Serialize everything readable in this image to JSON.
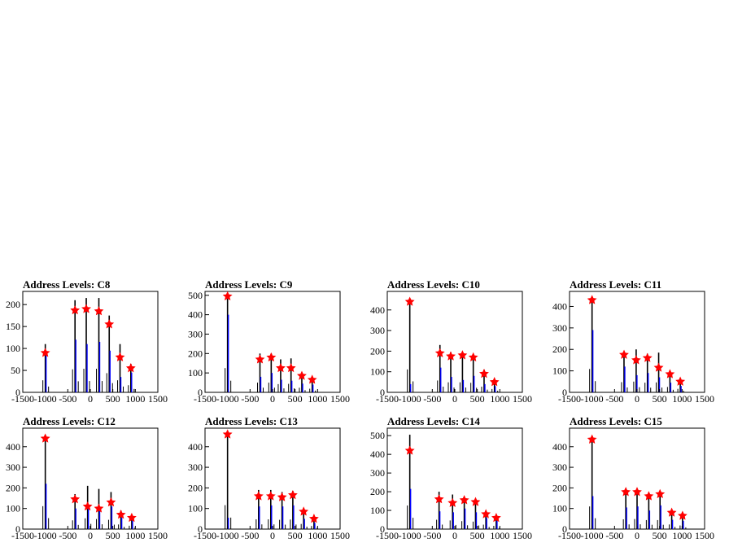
{
  "chart_data": [
    {
      "type": "bar",
      "title": "Address Levels: C8",
      "xlim": [
        -1500,
        1500
      ],
      "ylim": [
        0,
        230
      ],
      "yticks": [
        0,
        50,
        100,
        150,
        200
      ],
      "xticks": [
        -1500,
        -1000,
        -500,
        0,
        500,
        1000,
        1500
      ],
      "peaks": [
        {
          "x": -1000,
          "y": 90
        },
        {
          "x": -340,
          "y": 187
        },
        {
          "x": -90,
          "y": 190
        },
        {
          "x": 190,
          "y": 185
        },
        {
          "x": 420,
          "y": 155
        },
        {
          "x": 660,
          "y": 80
        },
        {
          "x": 900,
          "y": 55
        }
      ],
      "black_heights": [
        110,
        210,
        215,
        215,
        175,
        110,
        65
      ],
      "blue_heights": [
        90,
        120,
        110,
        115,
        95,
        35,
        45
      ]
    },
    {
      "type": "bar",
      "title": "Address Levels: C9",
      "xlim": [
        -1500,
        1500
      ],
      "ylim": [
        0,
        520
      ],
      "yticks": [
        0,
        100,
        200,
        300,
        400,
        500
      ],
      "xticks": [
        -1500,
        -1000,
        -500,
        0,
        500,
        1000,
        1500
      ],
      "peaks": [
        {
          "x": -1000,
          "y": 495
        },
        {
          "x": -280,
          "y": 170
        },
        {
          "x": -30,
          "y": 180
        },
        {
          "x": 180,
          "y": 125
        },
        {
          "x": 410,
          "y": 125
        },
        {
          "x": 650,
          "y": 85
        },
        {
          "x": 880,
          "y": 65
        }
      ],
      "black_heights": [
        500,
        200,
        200,
        170,
        175,
        95,
        75
      ],
      "blue_heights": [
        400,
        80,
        100,
        65,
        60,
        45,
        40
      ]
    },
    {
      "type": "bar",
      "title": "Address Levels: C10",
      "xlim": [
        -1500,
        1500
      ],
      "ylim": [
        0,
        490
      ],
      "yticks": [
        0,
        100,
        200,
        300,
        400
      ],
      "xticks": [
        -1500,
        -1000,
        -500,
        0,
        500,
        1000,
        1500
      ],
      "peaks": [
        {
          "x": -1000,
          "y": 440
        },
        {
          "x": -330,
          "y": 190
        },
        {
          "x": -90,
          "y": 175
        },
        {
          "x": 170,
          "y": 180
        },
        {
          "x": 410,
          "y": 170
        },
        {
          "x": 650,
          "y": 90
        },
        {
          "x": 880,
          "y": 50
        }
      ],
      "black_heights": [
        445,
        230,
        195,
        195,
        185,
        110,
        65
      ],
      "blue_heights": [
        40,
        120,
        75,
        60,
        80,
        40,
        30
      ]
    },
    {
      "type": "bar",
      "title": "Address Levels: C11",
      "xlim": [
        -1500,
        1500
      ],
      "ylim": [
        0,
        470
      ],
      "yticks": [
        0,
        100,
        200,
        300,
        400
      ],
      "xticks": [
        -1500,
        -1000,
        -500,
        0,
        500,
        1000,
        1500
      ],
      "peaks": [
        {
          "x": -1000,
          "y": 430
        },
        {
          "x": -290,
          "y": 175
        },
        {
          "x": -20,
          "y": 150
        },
        {
          "x": 230,
          "y": 160
        },
        {
          "x": 480,
          "y": 115
        },
        {
          "x": 730,
          "y": 85
        },
        {
          "x": 960,
          "y": 50
        }
      ],
      "black_heights": [
        435,
        190,
        200,
        180,
        185,
        100,
        65
      ],
      "blue_heights": [
        290,
        120,
        80,
        90,
        70,
        45,
        30
      ]
    },
    {
      "type": "bar",
      "title": "Address Levels: C12",
      "xlim": [
        -1500,
        1500
      ],
      "ylim": [
        0,
        490
      ],
      "yticks": [
        0,
        100,
        200,
        300,
        400
      ],
      "xticks": [
        -1500,
        -1000,
        -500,
        0,
        500,
        1000,
        1500
      ],
      "peaks": [
        {
          "x": -1000,
          "y": 440
        },
        {
          "x": -340,
          "y": 145
        },
        {
          "x": -60,
          "y": 110
        },
        {
          "x": 190,
          "y": 100
        },
        {
          "x": 460,
          "y": 130
        },
        {
          "x": 680,
          "y": 70
        },
        {
          "x": 920,
          "y": 55
        }
      ],
      "black_heights": [
        445,
        170,
        210,
        195,
        180,
        90,
        65
      ],
      "blue_heights": [
        220,
        100,
        110,
        95,
        110,
        55,
        40
      ]
    },
    {
      "type": "bar",
      "title": "Address Levels: C13",
      "xlim": [
        -1500,
        1500
      ],
      "ylim": [
        0,
        490
      ],
      "yticks": [
        0,
        100,
        200,
        300,
        400
      ],
      "xticks": [
        -1500,
        -1000,
        -500,
        0,
        500,
        1000,
        1500
      ],
      "peaks": [
        {
          "x": -1000,
          "y": 460
        },
        {
          "x": -310,
          "y": 160
        },
        {
          "x": -40,
          "y": 160
        },
        {
          "x": 210,
          "y": 155
        },
        {
          "x": 450,
          "y": 165
        },
        {
          "x": 690,
          "y": 85
        },
        {
          "x": 920,
          "y": 50
        }
      ],
      "black_heights": [
        465,
        190,
        190,
        180,
        185,
        100,
        60
      ],
      "blue_heights": [
        55,
        110,
        115,
        110,
        115,
        50,
        30
      ]
    },
    {
      "type": "bar",
      "title": "Address Levels: C14",
      "xlim": [
        -1500,
        1500
      ],
      "ylim": [
        0,
        540
      ],
      "yticks": [
        0,
        100,
        200,
        300,
        400,
        500
      ],
      "xticks": [
        -1500,
        -1000,
        -500,
        0,
        500,
        1000,
        1500
      ],
      "peaks": [
        {
          "x": -1000,
          "y": 420
        },
        {
          "x": -350,
          "y": 160
        },
        {
          "x": -50,
          "y": 140
        },
        {
          "x": 210,
          "y": 155
        },
        {
          "x": 460,
          "y": 145
        },
        {
          "x": 690,
          "y": 80
        },
        {
          "x": 920,
          "y": 60
        }
      ],
      "black_heights": [
        505,
        200,
        185,
        170,
        160,
        95,
        70
      ],
      "blue_heights": [
        215,
        95,
        90,
        110,
        90,
        60,
        45
      ]
    },
    {
      "type": "bar",
      "title": "Address Levels: C15",
      "xlim": [
        -1500,
        1500
      ],
      "ylim": [
        0,
        490
      ],
      "yticks": [
        0,
        100,
        200,
        300,
        400
      ],
      "xticks": [
        -1500,
        -1000,
        -500,
        0,
        500,
        1000,
        1500
      ],
      "peaks": [
        {
          "x": -1000,
          "y": 435
        },
        {
          "x": -250,
          "y": 180
        },
        {
          "x": 0,
          "y": 180
        },
        {
          "x": 260,
          "y": 160
        },
        {
          "x": 510,
          "y": 170
        },
        {
          "x": 770,
          "y": 80
        },
        {
          "x": 1010,
          "y": 65
        }
      ],
      "black_heights": [
        440,
        190,
        195,
        175,
        175,
        90,
        70
      ],
      "blue_heights": [
        160,
        105,
        110,
        90,
        115,
        45,
        40
      ]
    }
  ],
  "colors": {
    "outline": "#000000",
    "histogram": "#000000",
    "histogram_highlight": "#0000ff",
    "marker": "#ff0000"
  }
}
